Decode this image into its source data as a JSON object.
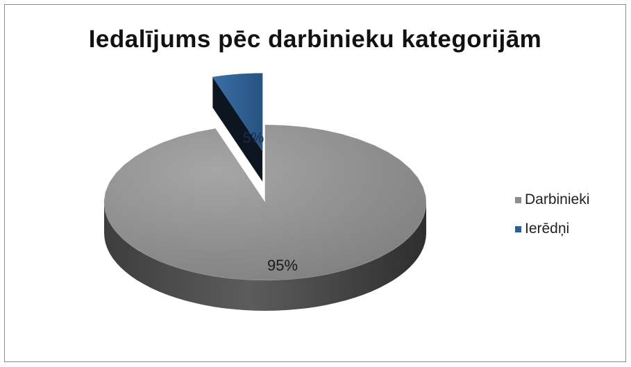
{
  "chart_data": {
    "type": "pie",
    "title": "Iedalījums pēc darbinieku kategorijām",
    "categories": [
      "Darbinieki",
      "Ierēdņi"
    ],
    "values": [
      95,
      5
    ],
    "data_labels": [
      "95%",
      "5%"
    ],
    "colors": [
      "#8c8c8c",
      "#2e5f92"
    ],
    "exploded": [
      false,
      true
    ],
    "three_d": true,
    "legend_position": "right"
  }
}
